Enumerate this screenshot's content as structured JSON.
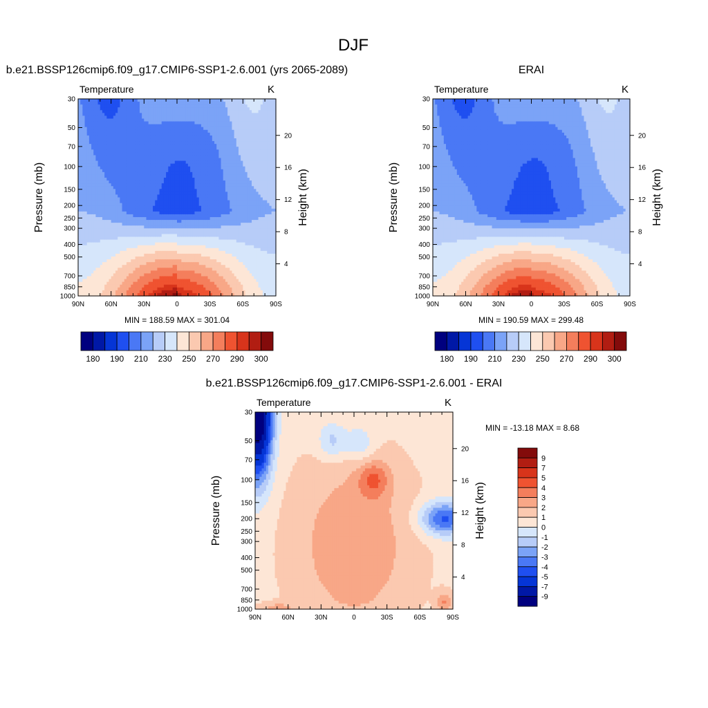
{
  "figure": {
    "title": "DJF"
  },
  "palettes": {
    "abs": [
      "#00007f",
      "#0018a6",
      "#0535d6",
      "#1f4ff0",
      "#4a78f5",
      "#7ba3f7",
      "#b7ccf8",
      "#d6e6fb",
      "#fde6d6",
      "#fbc9b0",
      "#f8a787",
      "#f47e5c",
      "#ef5331",
      "#d8341b",
      "#b11d12",
      "#830b0b"
    ],
    "diff": [
      "#00007f",
      "#0018a6",
      "#0535d6",
      "#1f4ff0",
      "#4a78f5",
      "#7ba3f7",
      "#b7ccf8",
      "#d6e6fb",
      "#fde6d6",
      "#fbc9b0",
      "#f8a787",
      "#f47e5c",
      "#ef5331",
      "#d8341b",
      "#b11d12",
      "#830b0b"
    ]
  },
  "chart_data": [
    {
      "type": "heatmap",
      "panel": "model",
      "title": "b.e21.BSSP126cmip6.f09_g17.CMIP6-SSP1-2.6.001 (yrs 2065-2089)",
      "left_label": "Temperature",
      "unit_label": "K",
      "ylabel": "Pressure (mb)",
      "ylabel_right": "Height (km)",
      "x_ticks": [
        "90N",
        "60N",
        "30N",
        "0",
        "30S",
        "60S",
        "90S"
      ],
      "y_ticks": [
        "30",
        "50",
        "70",
        "100",
        "150",
        "200",
        "250",
        "300",
        "400",
        "500",
        "700",
        "850",
        "1000"
      ],
      "y_ticks_right": [
        "20",
        "16",
        "12",
        "8",
        "4"
      ],
      "stats": {
        "text": "MIN = 188.59  MAX = 301.04",
        "min": 188.59,
        "max": 301.04
      },
      "levels": [
        180,
        185,
        190,
        200,
        210,
        220,
        230,
        240,
        250,
        260,
        270,
        280,
        290,
        295,
        300
      ],
      "colorbar_labels": [
        "180",
        "190",
        "210",
        "230",
        "250",
        "270",
        "290",
        "300"
      ],
      "ylim": [
        1000,
        30
      ],
      "xlim": [
        90,
        -90
      ]
    },
    {
      "type": "heatmap",
      "panel": "obs",
      "title": "ERAI",
      "left_label": "Temperature",
      "unit_label": "K",
      "ylabel": "Pressure (mb)",
      "ylabel_right": "Height (km)",
      "x_ticks": [
        "90N",
        "60N",
        "30N",
        "0",
        "30S",
        "60S",
        "90S"
      ],
      "y_ticks": [
        "30",
        "50",
        "70",
        "100",
        "150",
        "200",
        "250",
        "300",
        "400",
        "500",
        "700",
        "850",
        "1000"
      ],
      "y_ticks_right": [
        "20",
        "16",
        "12",
        "8",
        "4"
      ],
      "stats": {
        "text": "MIN = 190.59  MAX = 299.48",
        "min": 190.59,
        "max": 299.48
      },
      "levels": [
        180,
        185,
        190,
        200,
        210,
        220,
        230,
        240,
        250,
        260,
        270,
        280,
        290,
        295,
        300
      ],
      "colorbar_labels": [
        "180",
        "190",
        "210",
        "230",
        "250",
        "270",
        "290",
        "300"
      ],
      "ylim": [
        1000,
        30
      ],
      "xlim": [
        90,
        -90
      ]
    },
    {
      "type": "heatmap",
      "panel": "diff",
      "title": "b.e21.BSSP126cmip6.f09_g17.CMIP6-SSP1-2.6.001 - ERAI",
      "left_label": "Temperature",
      "unit_label": "K",
      "ylabel": "Pressure (mb)",
      "ylabel_right": "Height (km)",
      "x_ticks": [
        "90N",
        "60N",
        "30N",
        "0",
        "30S",
        "60S",
        "90S"
      ],
      "y_ticks": [
        "30",
        "50",
        "70",
        "100",
        "150",
        "200",
        "250",
        "300",
        "400",
        "500",
        "700",
        "850",
        "1000"
      ],
      "y_ticks_right": [
        "20",
        "16",
        "12",
        "8",
        "4"
      ],
      "stats": {
        "text": "MIN = -13.18  MAX =   8.68",
        "min": -13.18,
        "max": 8.68
      },
      "levels": [
        -9,
        -7,
        -5,
        -4,
        -3,
        -2,
        -1,
        0,
        1,
        2,
        3,
        4,
        5,
        7,
        9
      ],
      "colorbar_labels": [
        "9",
        "7",
        "5",
        "4",
        "3",
        "2",
        "1",
        "0",
        "-1",
        "-2",
        "-3",
        "-4",
        "-5",
        "-7",
        "-9"
      ],
      "ylim": [
        1000,
        30
      ],
      "xlim": [
        90,
        -90
      ]
    }
  ]
}
